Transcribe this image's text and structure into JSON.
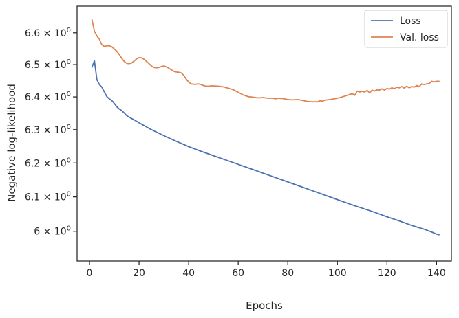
{
  "chart_data": {
    "type": "line",
    "title": "",
    "xlabel": "Epochs",
    "ylabel": "Negative log-likelihood",
    "yscale": "log",
    "xlim": [
      -5,
      146
    ],
    "ylim": [
      5.915,
      6.685
    ],
    "xticks": [
      0,
      20,
      40,
      60,
      80,
      100,
      120,
      140
    ],
    "yticks": [
      {
        "value": 6.0,
        "mantissa": "6",
        "exponent": "0"
      },
      {
        "value": 6.1,
        "mantissa": "6.1",
        "exponent": "0"
      },
      {
        "value": 6.2,
        "mantissa": "6.2",
        "exponent": "0"
      },
      {
        "value": 6.3,
        "mantissa": "6.3",
        "exponent": "0"
      },
      {
        "value": 6.4,
        "mantissa": "6.4",
        "exponent": "0"
      },
      {
        "value": 6.5,
        "mantissa": "6.5",
        "exponent": "0"
      },
      {
        "value": 6.6,
        "mantissa": "6.6",
        "exponent": "0"
      }
    ],
    "times_symbol": "×",
    "mantissa_base": "10",
    "grid": false,
    "legend_position": "top-right",
    "series": [
      {
        "name": "Loss",
        "color": "#4c72b0",
        "points": [
          [
            1,
            6.492
          ],
          [
            2,
            6.512
          ],
          [
            3,
            6.453
          ],
          [
            4,
            6.438
          ],
          [
            5,
            6.43
          ],
          [
            6,
            6.415
          ],
          [
            7,
            6.401
          ],
          [
            8,
            6.394
          ],
          [
            9,
            6.389
          ],
          [
            10,
            6.38
          ],
          [
            11,
            6.37
          ],
          [
            12,
            6.363
          ],
          [
            13,
            6.358
          ],
          [
            14,
            6.351
          ],
          [
            15,
            6.343
          ],
          [
            16,
            6.338
          ],
          [
            18,
            6.33
          ],
          [
            20,
            6.321
          ],
          [
            25,
            6.3
          ],
          [
            30,
            6.282
          ],
          [
            35,
            6.265
          ],
          [
            40,
            6.249
          ],
          [
            45,
            6.235
          ],
          [
            50,
            6.222
          ],
          [
            55,
            6.209
          ],
          [
            60,
            6.196
          ],
          [
            65,
            6.183
          ],
          [
            70,
            6.17
          ],
          [
            75,
            6.157
          ],
          [
            80,
            6.144
          ],
          [
            85,
            6.131
          ],
          [
            90,
            6.118
          ],
          [
            95,
            6.105
          ],
          [
            100,
            6.092
          ],
          [
            105,
            6.079
          ],
          [
            110,
            6.067
          ],
          [
            115,
            6.055
          ],
          [
            120,
            6.042
          ],
          [
            125,
            6.03
          ],
          [
            130,
            6.017
          ],
          [
            135,
            6.006
          ],
          [
            138,
            5.998
          ],
          [
            140,
            5.992
          ],
          [
            141,
            5.99
          ]
        ]
      },
      {
        "name": "Val. loss",
        "color": "#dd8452",
        "points": [
          [
            1,
            6.642
          ],
          [
            2,
            6.605
          ],
          [
            3,
            6.59
          ],
          [
            4,
            6.58
          ],
          [
            5,
            6.562
          ],
          [
            6,
            6.557
          ],
          [
            7,
            6.559
          ],
          [
            8,
            6.559
          ],
          [
            9,
            6.556
          ],
          [
            10,
            6.549
          ],
          [
            11,
            6.542
          ],
          [
            12,
            6.532
          ],
          [
            13,
            6.52
          ],
          [
            14,
            6.51
          ],
          [
            15,
            6.504
          ],
          [
            16,
            6.503
          ],
          [
            17,
            6.505
          ],
          [
            18,
            6.511
          ],
          [
            19,
            6.518
          ],
          [
            20,
            6.522
          ],
          [
            21,
            6.521
          ],
          [
            22,
            6.517
          ],
          [
            23,
            6.51
          ],
          [
            24,
            6.503
          ],
          [
            25,
            6.496
          ],
          [
            26,
            6.491
          ],
          [
            27,
            6.49
          ],
          [
            28,
            6.491
          ],
          [
            29,
            6.494
          ],
          [
            30,
            6.496
          ],
          [
            31,
            6.493
          ],
          [
            32,
            6.489
          ],
          [
            33,
            6.484
          ],
          [
            34,
            6.479
          ],
          [
            35,
            6.477
          ],
          [
            36,
            6.476
          ],
          [
            37,
            6.474
          ],
          [
            38,
            6.467
          ],
          [
            39,
            6.455
          ],
          [
            40,
            6.446
          ],
          [
            41,
            6.44
          ],
          [
            42,
            6.439
          ],
          [
            43,
            6.439
          ],
          [
            44,
            6.44
          ],
          [
            45,
            6.438
          ],
          [
            46,
            6.435
          ],
          [
            47,
            6.433
          ],
          [
            48,
            6.433
          ],
          [
            49,
            6.434
          ],
          [
            50,
            6.434
          ],
          [
            52,
            6.433
          ],
          [
            54,
            6.431
          ],
          [
            56,
            6.427
          ],
          [
            58,
            6.422
          ],
          [
            60,
            6.414
          ],
          [
            62,
            6.406
          ],
          [
            64,
            6.401
          ],
          [
            66,
            6.399
          ],
          [
            68,
            6.397
          ],
          [
            70,
            6.398
          ],
          [
            72,
            6.396
          ],
          [
            74,
            6.396
          ],
          [
            75,
            6.394
          ],
          [
            76,
            6.396
          ],
          [
            78,
            6.395
          ],
          [
            80,
            6.392
          ],
          [
            82,
            6.391
          ],
          [
            84,
            6.392
          ],
          [
            86,
            6.389
          ],
          [
            88,
            6.386
          ],
          [
            90,
            6.385
          ],
          [
            92,
            6.385
          ],
          [
            93,
            6.388
          ],
          [
            94,
            6.387
          ],
          [
            95,
            6.39
          ],
          [
            96,
            6.391
          ],
          [
            98,
            6.393
          ],
          [
            100,
            6.396
          ],
          [
            102,
            6.4
          ],
          [
            104,
            6.405
          ],
          [
            106,
            6.41
          ],
          [
            107,
            6.405
          ],
          [
            108,
            6.418
          ],
          [
            109,
            6.415
          ],
          [
            110,
            6.417
          ],
          [
            111,
            6.415
          ],
          [
            112,
            6.42
          ],
          [
            113,
            6.412
          ],
          [
            114,
            6.421
          ],
          [
            115,
            6.418
          ],
          [
            116,
            6.422
          ],
          [
            117,
            6.421
          ],
          [
            118,
            6.425
          ],
          [
            119,
            6.421
          ],
          [
            120,
            6.426
          ],
          [
            121,
            6.424
          ],
          [
            122,
            6.428
          ],
          [
            123,
            6.425
          ],
          [
            124,
            6.43
          ],
          [
            125,
            6.428
          ],
          [
            126,
            6.432
          ],
          [
            127,
            6.427
          ],
          [
            128,
            6.433
          ],
          [
            129,
            6.428
          ],
          [
            130,
            6.432
          ],
          [
            131,
            6.43
          ],
          [
            132,
            6.435
          ],
          [
            133,
            6.432
          ],
          [
            134,
            6.44
          ],
          [
            135,
            6.438
          ],
          [
            136,
            6.44
          ],
          [
            137,
            6.441
          ],
          [
            138,
            6.448
          ],
          [
            139,
            6.446
          ],
          [
            140,
            6.448
          ],
          [
            141,
            6.448
          ]
        ]
      }
    ]
  }
}
